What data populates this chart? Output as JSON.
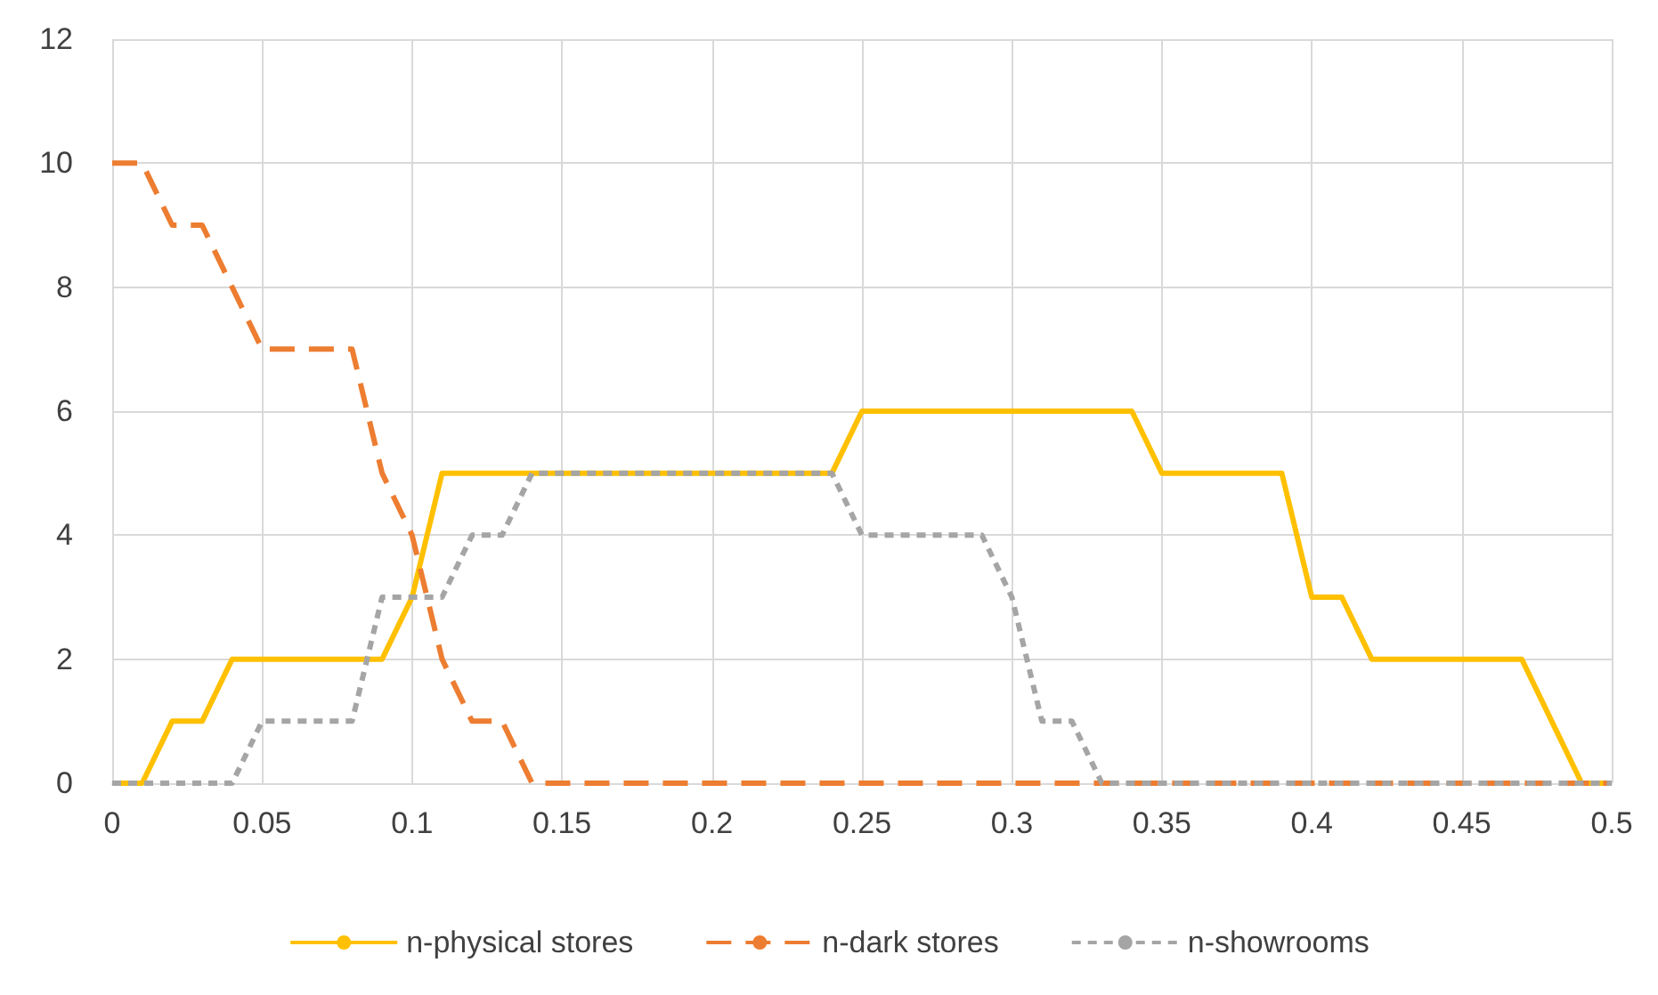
{
  "chart_data": {
    "type": "line",
    "x": [
      0,
      0.01,
      0.02,
      0.03,
      0.04,
      0.05,
      0.06,
      0.07,
      0.08,
      0.09,
      0.1,
      0.11,
      0.12,
      0.13,
      0.14,
      0.15,
      0.16,
      0.17,
      0.18,
      0.19,
      0.2,
      0.21,
      0.22,
      0.23,
      0.24,
      0.25,
      0.26,
      0.27,
      0.28,
      0.29,
      0.3,
      0.31,
      0.32,
      0.33,
      0.34,
      0.35,
      0.36,
      0.37,
      0.38,
      0.39,
      0.4,
      0.41,
      0.42,
      0.43,
      0.44,
      0.45,
      0.46,
      0.47,
      0.48,
      0.49,
      0.5
    ],
    "series": [
      {
        "name": "n-physical stores",
        "color": "#ffc000",
        "line_style": "solid",
        "values": [
          0,
          0,
          1,
          1,
          2,
          2,
          2,
          2,
          2,
          2,
          3,
          5,
          5,
          5,
          5,
          5,
          5,
          5,
          5,
          5,
          5,
          5,
          5,
          5,
          5,
          6,
          6,
          6,
          6,
          6,
          6,
          6,
          6,
          6,
          6,
          5,
          5,
          5,
          5,
          5,
          3,
          3,
          2,
          2,
          2,
          2,
          2,
          2,
          1,
          0,
          0
        ]
      },
      {
        "name": "n-dark stores",
        "color": "#ed7d31",
        "line_style": "dashed",
        "values": [
          10,
          10,
          9,
          9,
          8,
          7,
          7,
          7,
          7,
          5,
          4,
          2,
          1,
          1,
          0,
          0,
          0,
          0,
          0,
          0,
          0,
          0,
          0,
          0,
          0,
          0,
          0,
          0,
          0,
          0,
          0,
          0,
          0,
          0,
          0,
          0,
          0,
          0,
          0,
          0,
          0,
          0,
          0,
          0,
          0,
          0,
          0,
          0,
          0,
          0,
          0
        ]
      },
      {
        "name": "n-showrooms",
        "color": "#a5a5a5",
        "line_style": "dotted",
        "values": [
          0,
          0,
          0,
          0,
          0,
          1,
          1,
          1,
          1,
          3,
          3,
          3,
          4,
          4,
          5,
          5,
          5,
          5,
          5,
          5,
          5,
          5,
          5,
          5,
          5,
          4,
          4,
          4,
          4,
          4,
          3,
          1,
          1,
          0,
          0,
          0,
          0,
          0,
          0,
          0,
          0,
          0,
          0,
          0,
          0,
          0,
          0,
          0,
          0,
          0,
          0
        ]
      }
    ],
    "xlim": [
      0,
      0.5
    ],
    "xticks": [
      0,
      0.05,
      0.1,
      0.15,
      0.2,
      0.25,
      0.3,
      0.35,
      0.4,
      0.45,
      0.5
    ],
    "ylim": [
      0,
      12
    ],
    "yticks": [
      0,
      2,
      4,
      6,
      8,
      10,
      12
    ],
    "grid": true,
    "legend": "bottom",
    "marker": "none"
  }
}
